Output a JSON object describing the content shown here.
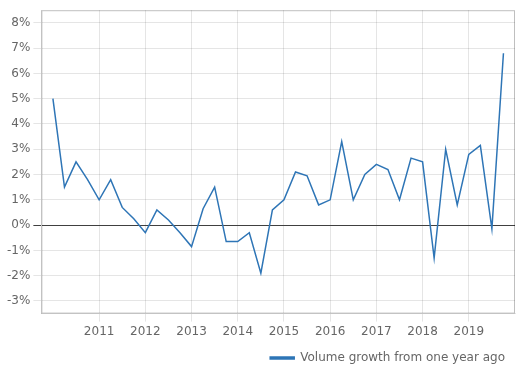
{
  "chart_data": {
    "type": "line",
    "x": [
      2010.0,
      2010.25,
      2010.5,
      2010.75,
      2011.0,
      2011.25,
      2011.5,
      2011.75,
      2012.0,
      2012.25,
      2012.5,
      2012.75,
      2013.0,
      2013.25,
      2013.5,
      2013.75,
      2014.0,
      2014.25,
      2014.5,
      2014.75,
      2015.0,
      2015.25,
      2015.5,
      2015.75,
      2016.0,
      2016.25,
      2016.5,
      2016.75,
      2017.0,
      2017.25,
      2017.5,
      2017.75,
      2018.0,
      2018.25,
      2018.5,
      2018.75,
      2019.0,
      2019.25,
      2019.5,
      2019.75
    ],
    "series": [
      {
        "name": "Volume growth from one year ago",
        "color": "#2e75b6",
        "values": [
          5.0,
          1.5,
          2.5,
          1.8,
          1.0,
          1.8,
          0.7,
          0.25,
          -0.3,
          0.6,
          0.2,
          -0.3,
          -0.85,
          0.65,
          1.5,
          -0.65,
          -0.65,
          -0.3,
          -1.9,
          0.6,
          1.0,
          2.1,
          1.95,
          0.8,
          1.0,
          3.3,
          1.0,
          2.0,
          2.4,
          2.2,
          1.0,
          2.65,
          2.5,
          -1.3,
          3.0,
          0.8,
          2.8,
          3.15,
          -0.15,
          6.8
        ]
      }
    ],
    "xlim": [
      2009.75,
      2020.0
    ],
    "ylim": [
      -3.5,
      8.5
    ],
    "xticks": [
      2011,
      2012,
      2013,
      2014,
      2015,
      2016,
      2017,
      2018,
      2019
    ],
    "yticks": [
      {
        "value": -3,
        "label": "-3%"
      },
      {
        "value": -2,
        "label": "-2%"
      },
      {
        "value": -1,
        "label": "-1%"
      },
      {
        "value": 0,
        "label": "0%"
      },
      {
        "value": 1,
        "label": "1%"
      },
      {
        "value": 2,
        "label": "2%"
      },
      {
        "value": 3,
        "label": "3%"
      },
      {
        "value": 4,
        "label": "4%"
      },
      {
        "value": 5,
        "label": "5%"
      },
      {
        "value": 6,
        "label": "6%"
      },
      {
        "value": 7,
        "label": "7%"
      },
      {
        "value": 8,
        "label": "8%"
      }
    ],
    "grid": true,
    "legend": "lower right"
  }
}
